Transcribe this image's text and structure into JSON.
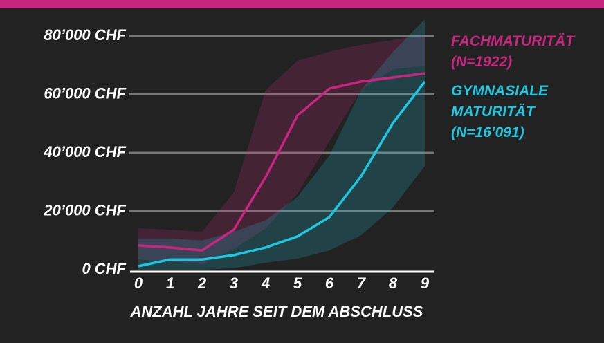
{
  "chart_data": {
    "type": "line",
    "x": [
      0,
      1,
      2,
      3,
      4,
      5,
      6,
      7,
      8,
      9
    ],
    "xlim": [
      0,
      9
    ],
    "xticks": [
      0,
      1,
      2,
      3,
      4,
      5,
      6,
      7,
      8,
      9
    ],
    "xlabel": "ANZAHL JAHRE SEIT DEM ABSCHLUSS",
    "ylim": [
      0,
      80000
    ],
    "yticks": [
      {
        "value": 0,
        "label": "0 CHF"
      },
      {
        "value": 20000,
        "label": "20’000 CHF"
      },
      {
        "value": 40000,
        "label": "40’000 CHF"
      },
      {
        "value": 60000,
        "label": "60’000 CHF"
      },
      {
        "value": 80000,
        "label": "80’000 CHF"
      }
    ],
    "grid": true,
    "series": [
      {
        "name": "FACHMATURITÄT (N=1922)",
        "color": "#c8267f",
        "values": [
          8300,
          7600,
          6600,
          13700,
          31700,
          52800,
          62000,
          64400,
          65800,
          67200
        ],
        "lower": [
          3500,
          2800,
          1900,
          7100,
          14200,
          26000,
          43800,
          61500,
          68600,
          69800
        ],
        "upper": [
          14200,
          13700,
          13000,
          26500,
          61500,
          71500,
          74600,
          77000,
          78600,
          80500
        ]
      },
      {
        "name": "GYMNASIALE MATURITÄT (N=16’091)",
        "color": "#1ec8e0",
        "values": [
          1200,
          3500,
          3500,
          5000,
          7600,
          11400,
          18000,
          32000,
          50200,
          64400
        ],
        "lower": [
          0,
          0,
          0,
          500,
          2400,
          3800,
          6600,
          11800,
          21300,
          35500
        ],
        "upper": [
          10700,
          10700,
          10000,
          13000,
          17000,
          24900,
          39000,
          61500,
          74600,
          85700
        ]
      }
    ]
  }
}
